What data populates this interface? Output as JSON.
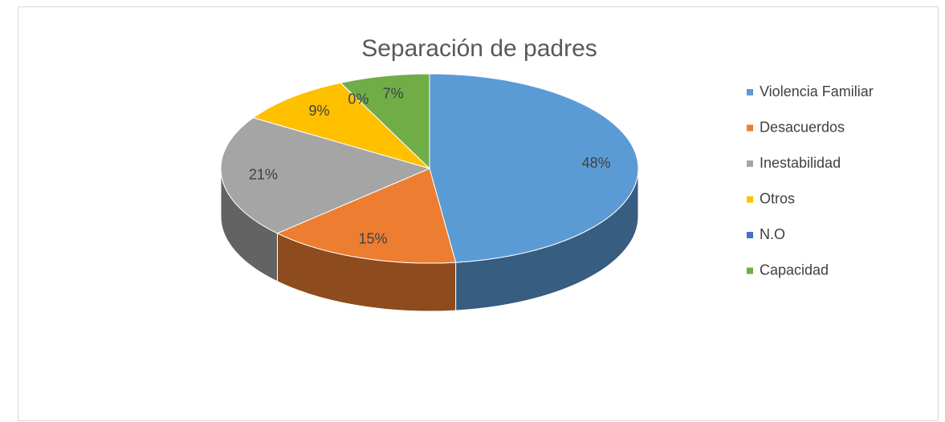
{
  "chart_data": {
    "type": "pie",
    "title": "Separación de padres",
    "categories": [
      "Violencia Familiar",
      "Desacuerdos",
      "Inestabilidad",
      "Otros",
      "N.O",
      "Capacidad"
    ],
    "values": [
      48,
      15,
      21,
      9,
      0,
      7
    ],
    "value_labels": [
      "48%",
      "15%",
      "21%",
      "9%",
      "0%",
      "7%"
    ],
    "colors": [
      "#5b9bd5",
      "#ed7d31",
      "#a5a5a5",
      "#ffc000",
      "#4472c4",
      "#70ad47"
    ],
    "legend": "right"
  }
}
